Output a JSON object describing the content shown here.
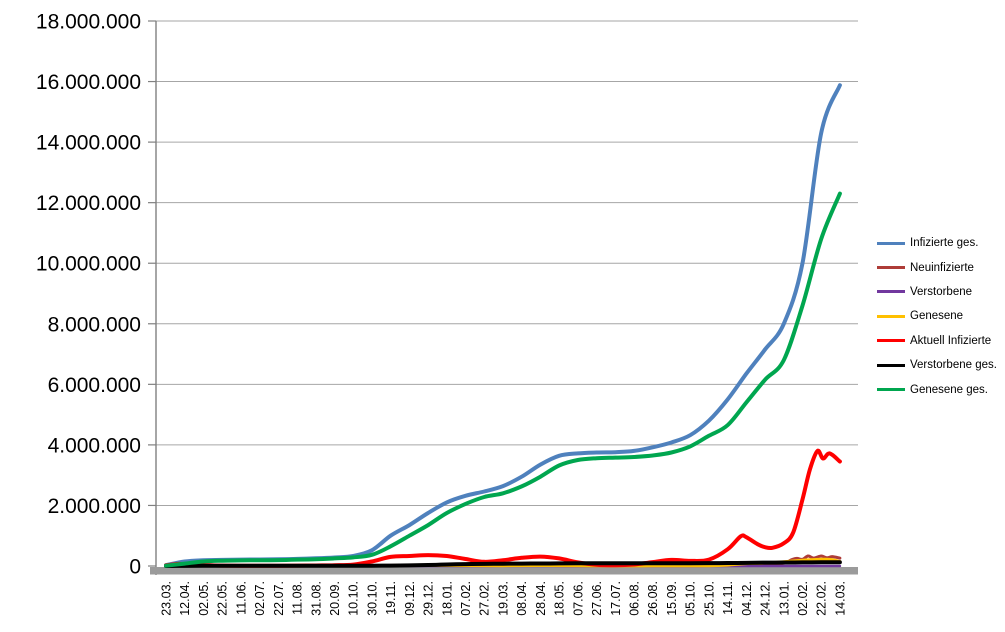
{
  "chart_data": {
    "type": "line",
    "title": "",
    "grid": true,
    "legend_position": "right",
    "x_unit": "category_index",
    "ylim": [
      0,
      18000000
    ],
    "y_major_step": 2000000,
    "y_tick_labels": [
      "18.000.000",
      "16.000.000",
      "14.000.000",
      "12.000.000",
      "10.000.000",
      "8.000.000",
      "6.000.000",
      "4.000.000",
      "2.000.000",
      "0"
    ],
    "x_tick_labels": [
      "23.03.",
      "12.04.",
      "02.05.",
      "22.05.",
      "11.06.",
      "02.07.",
      "22.07.",
      "11.08.",
      "31.08.",
      "20.09.",
      "10.10.",
      "30.10.",
      "19.11.",
      "09.12.",
      "29.12.",
      "18.01.",
      "07.02.",
      "27.02.",
      "19.03.",
      "08.04.",
      "28.04.",
      "18.05.",
      "07.06.",
      "27.06.",
      "17.07.",
      "06.08.",
      "26.08.",
      "15.09.",
      "05.10.",
      "25.10.",
      "14.11.",
      "04.12.",
      "24.12.",
      "13.01.",
      "02.02.",
      "22.02.",
      "14.03."
    ],
    "colors": {
      "grid": "#A6A6A6",
      "axis": "#808080",
      "baseline_bar": "#9B9B9B"
    },
    "series": [
      {
        "name": "Infizierte ges.",
        "color": "#4F81BD",
        "stroke_width": 4,
        "points": [
          [
            0,
            30000
          ],
          [
            1,
            150000
          ],
          [
            2,
            190000
          ],
          [
            3,
            200000
          ],
          [
            4,
            210000
          ],
          [
            5,
            215000
          ],
          [
            6,
            220000
          ],
          [
            7,
            235000
          ],
          [
            8,
            255000
          ],
          [
            9,
            280000
          ],
          [
            10,
            330000
          ],
          [
            11,
            520000
          ],
          [
            12,
            1000000
          ],
          [
            13,
            1350000
          ],
          [
            14,
            1750000
          ],
          [
            15,
            2100000
          ],
          [
            16,
            2320000
          ],
          [
            17,
            2460000
          ],
          [
            18,
            2640000
          ],
          [
            19,
            2950000
          ],
          [
            20,
            3350000
          ],
          [
            21,
            3640000
          ],
          [
            22,
            3720000
          ],
          [
            23,
            3750000
          ],
          [
            24,
            3760000
          ],
          [
            25,
            3800000
          ],
          [
            26,
            3920000
          ],
          [
            27,
            4080000
          ],
          [
            28,
            4320000
          ],
          [
            29,
            4800000
          ],
          [
            30,
            5500000
          ],
          [
            31,
            6350000
          ],
          [
            32,
            7150000
          ],
          [
            33,
            8000000
          ],
          [
            34,
            10000000
          ],
          [
            35,
            14300000
          ],
          [
            36,
            15880000
          ]
        ]
      },
      {
        "name": "Neuinfizierte",
        "color": "#AE3C38",
        "stroke_width": 3,
        "points": [
          [
            0,
            4000
          ],
          [
            2,
            1500
          ],
          [
            4,
            500
          ],
          [
            6,
            500
          ],
          [
            8,
            1200
          ],
          [
            10,
            4000
          ],
          [
            12,
            20000
          ],
          [
            14,
            25000
          ],
          [
            16,
            12000
          ],
          [
            18,
            15000
          ],
          [
            20,
            20000
          ],
          [
            22,
            5000
          ],
          [
            24,
            1500
          ],
          [
            26,
            8000
          ],
          [
            28,
            10000
          ],
          [
            29,
            15000
          ],
          [
            30,
            40000
          ],
          [
            31,
            60000
          ],
          [
            32,
            45000
          ],
          [
            33,
            90000
          ],
          [
            33.4,
            200000
          ],
          [
            33.7,
            250000
          ],
          [
            34,
            220000
          ],
          [
            34.3,
            330000
          ],
          [
            34.6,
            260000
          ],
          [
            35,
            330000
          ],
          [
            35.3,
            270000
          ],
          [
            35.6,
            310000
          ],
          [
            36,
            260000
          ]
        ]
      },
      {
        "name": "Verstorbene",
        "color": "#71389E",
        "stroke_width": 2.5,
        "points": [
          [
            0,
            500
          ],
          [
            5,
            300
          ],
          [
            10,
            400
          ],
          [
            12,
            600
          ],
          [
            14,
            900
          ],
          [
            16,
            800
          ],
          [
            18,
            400
          ],
          [
            20,
            300
          ],
          [
            22,
            250
          ],
          [
            24,
            150
          ],
          [
            26,
            150
          ],
          [
            28,
            200
          ],
          [
            30,
            300
          ],
          [
            32,
            400
          ],
          [
            33,
            350
          ],
          [
            34,
            250
          ],
          [
            35,
            280
          ],
          [
            36,
            300
          ]
        ]
      },
      {
        "name": "Genesene",
        "color": "#FFC000",
        "stroke_width": 3,
        "points": [
          [
            0,
            2000
          ],
          [
            2,
            5000
          ],
          [
            4,
            3000
          ],
          [
            6,
            1000
          ],
          [
            8,
            1500
          ],
          [
            10,
            3000
          ],
          [
            12,
            15000
          ],
          [
            14,
            22000
          ],
          [
            16,
            18000
          ],
          [
            18,
            10000
          ],
          [
            20,
            16000
          ],
          [
            22,
            12000
          ],
          [
            24,
            2000
          ],
          [
            26,
            5000
          ],
          [
            28,
            8000
          ],
          [
            29,
            10000
          ],
          [
            30,
            30000
          ],
          [
            31,
            80000
          ],
          [
            32,
            100000
          ],
          [
            33,
            140000
          ],
          [
            34,
            190000
          ],
          [
            35,
            220000
          ],
          [
            35.5,
            215000
          ],
          [
            36,
            150000
          ]
        ]
      },
      {
        "name": "Aktuell Infizierte",
        "color": "#FF0000",
        "stroke_width": 4,
        "points": [
          [
            0,
            20000
          ],
          [
            0.7,
            70000
          ],
          [
            1,
            60000
          ],
          [
            2,
            30000
          ],
          [
            3,
            12000
          ],
          [
            4,
            8000
          ],
          [
            5,
            7000
          ],
          [
            6,
            8000
          ],
          [
            7,
            12000
          ],
          [
            8,
            18000
          ],
          [
            9,
            25000
          ],
          [
            10,
            45000
          ],
          [
            11,
            150000
          ],
          [
            12,
            300000
          ],
          [
            13,
            330000
          ],
          [
            14,
            360000
          ],
          [
            15,
            330000
          ],
          [
            16,
            230000
          ],
          [
            17,
            140000
          ],
          [
            18,
            190000
          ],
          [
            19,
            270000
          ],
          [
            20,
            310000
          ],
          [
            21,
            250000
          ],
          [
            22,
            120000
          ],
          [
            23,
            40000
          ],
          [
            24,
            25000
          ],
          [
            25,
            50000
          ],
          [
            26,
            130000
          ],
          [
            27,
            200000
          ],
          [
            28,
            170000
          ],
          [
            29,
            210000
          ],
          [
            30,
            550000
          ],
          [
            30.7,
            980000
          ],
          [
            31,
            950000
          ],
          [
            31.6,
            720000
          ],
          [
            32,
            620000
          ],
          [
            32.4,
            600000
          ],
          [
            33,
            750000
          ],
          [
            33.5,
            1100000
          ],
          [
            34,
            2200000
          ],
          [
            34.4,
            3200000
          ],
          [
            34.8,
            3800000
          ],
          [
            35.1,
            3550000
          ],
          [
            35.45,
            3720000
          ],
          [
            36,
            3450000
          ]
        ]
      },
      {
        "name": "Verstorbene ges.",
        "color": "#000000",
        "stroke_width": 4,
        "points": [
          [
            0,
            1000
          ],
          [
            1,
            4000
          ],
          [
            2,
            7000
          ],
          [
            3,
            8200
          ],
          [
            4,
            8800
          ],
          [
            5,
            9000
          ],
          [
            6,
            9100
          ],
          [
            7,
            9200
          ],
          [
            8,
            9300
          ],
          [
            9,
            9400
          ],
          [
            10,
            9800
          ],
          [
            11,
            11000
          ],
          [
            12,
            14000
          ],
          [
            13,
            21000
          ],
          [
            14,
            33000
          ],
          [
            15,
            48000
          ],
          [
            16,
            62000
          ],
          [
            17,
            70000
          ],
          [
            18,
            75000
          ],
          [
            19,
            79000
          ],
          [
            20,
            83000
          ],
          [
            21,
            86000
          ],
          [
            22,
            89000
          ],
          [
            23,
            90500
          ],
          [
            24,
            91500
          ],
          [
            25,
            92000
          ],
          [
            26,
            92200
          ],
          [
            27,
            92800
          ],
          [
            28,
            93800
          ],
          [
            29,
            95000
          ],
          [
            30,
            98000
          ],
          [
            31,
            103000
          ],
          [
            32,
            111000
          ],
          [
            33,
            115000
          ],
          [
            34,
            118000
          ],
          [
            35,
            122000
          ],
          [
            36,
            126000
          ]
        ]
      },
      {
        "name": "Genesene ges.",
        "color": "#00A64F",
        "stroke_width": 4,
        "points": [
          [
            0,
            10000
          ],
          [
            1,
            80000
          ],
          [
            2,
            150000
          ],
          [
            3,
            175000
          ],
          [
            4,
            185000
          ],
          [
            5,
            190000
          ],
          [
            6,
            195000
          ],
          [
            7,
            210000
          ],
          [
            8,
            225000
          ],
          [
            9,
            250000
          ],
          [
            10,
            285000
          ],
          [
            11,
            370000
          ],
          [
            12,
            650000
          ],
          [
            13,
            1000000
          ],
          [
            14,
            1350000
          ],
          [
            15,
            1750000
          ],
          [
            16,
            2050000
          ],
          [
            17,
            2280000
          ],
          [
            18,
            2400000
          ],
          [
            19,
            2630000
          ],
          [
            20,
            2950000
          ],
          [
            21,
            3320000
          ],
          [
            22,
            3500000
          ],
          [
            23,
            3560000
          ],
          [
            24,
            3580000
          ],
          [
            25,
            3600000
          ],
          [
            26,
            3650000
          ],
          [
            27,
            3750000
          ],
          [
            28,
            3950000
          ],
          [
            29,
            4300000
          ],
          [
            30,
            4650000
          ],
          [
            31,
            5400000
          ],
          [
            32,
            6150000
          ],
          [
            33,
            6800000
          ],
          [
            34,
            8600000
          ],
          [
            35,
            10800000
          ],
          [
            36,
            12300000
          ]
        ]
      }
    ]
  }
}
